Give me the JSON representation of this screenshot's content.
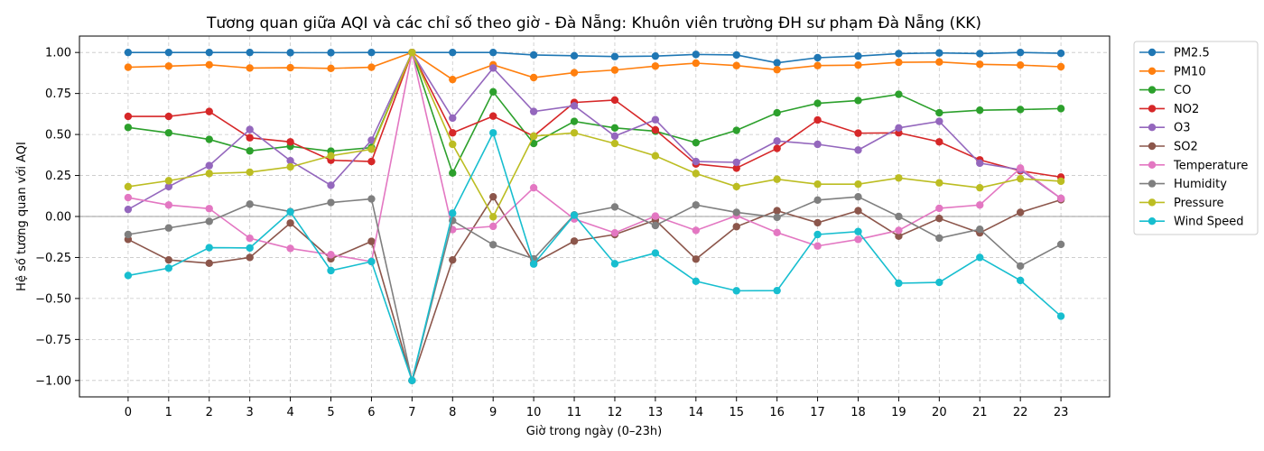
{
  "chart_data": {
    "type": "line",
    "title": "Tương quan giữa AQI và các chỉ số theo giờ - Đà Nẵng: Khuôn viên trường ĐH sư phạm Đà Nẵng (KK)",
    "xlabel": "Giờ trong ngày (0–23h)",
    "ylabel": "Hệ số tương quan với AQI",
    "x": [
      0,
      1,
      2,
      3,
      4,
      5,
      6,
      7,
      8,
      9,
      10,
      11,
      12,
      13,
      14,
      15,
      16,
      17,
      18,
      19,
      20,
      21,
      22,
      23
    ],
    "xlim": [
      -1.2,
      24.2
    ],
    "ylim": [
      -1.1,
      1.1
    ],
    "yticks": [
      -1.0,
      -0.75,
      -0.5,
      -0.25,
      0.0,
      0.25,
      0.5,
      0.75,
      1.0
    ],
    "grid": true,
    "legend_position": "outside-top-right",
    "series": [
      {
        "name": "PM2.5",
        "color": "#1f77b4",
        "values": [
          1.0,
          1.0,
          1.0,
          1.0,
          0.999,
          0.999,
          1.0,
          1.0,
          1.0,
          1.0,
          0.985,
          0.98,
          0.975,
          0.978,
          0.988,
          0.985,
          0.937,
          0.968,
          0.978,
          0.993,
          0.997,
          0.993,
          1.0,
          0.995
        ]
      },
      {
        "name": "PM10",
        "color": "#ff7f0e",
        "values": [
          0.91,
          0.917,
          0.925,
          0.905,
          0.907,
          0.903,
          0.91,
          1.0,
          0.835,
          0.925,
          0.847,
          0.877,
          0.893,
          0.917,
          0.935,
          0.92,
          0.895,
          0.92,
          0.923,
          0.94,
          0.942,
          0.928,
          0.923,
          0.913
        ]
      },
      {
        "name": "CO",
        "color": "#2ca02c",
        "values": [
          0.543,
          0.51,
          0.47,
          0.4,
          0.428,
          0.398,
          0.42,
          1.0,
          0.265,
          0.76,
          0.445,
          0.58,
          0.54,
          0.52,
          0.45,
          0.525,
          0.632,
          0.69,
          0.707,
          0.745,
          0.632,
          0.648,
          0.652,
          0.658
        ]
      },
      {
        "name": "NO2",
        "color": "#d62728",
        "values": [
          0.61,
          0.61,
          0.64,
          0.48,
          0.455,
          0.343,
          0.335,
          1.0,
          0.51,
          0.612,
          0.49,
          0.695,
          0.71,
          0.528,
          0.32,
          0.295,
          0.415,
          0.588,
          0.508,
          0.51,
          0.455,
          0.345,
          0.278,
          0.24
        ]
      },
      {
        "name": "O3",
        "color": "#9467bd",
        "values": [
          0.043,
          0.182,
          0.31,
          0.53,
          0.34,
          0.19,
          0.465,
          1.0,
          0.6,
          0.905,
          0.64,
          0.675,
          0.49,
          0.59,
          0.335,
          0.33,
          0.46,
          0.44,
          0.405,
          0.54,
          0.58,
          0.325,
          0.285,
          0.11
        ]
      },
      {
        "name": "SO2",
        "color": "#8c564b",
        "values": [
          -0.14,
          -0.265,
          -0.285,
          -0.25,
          -0.04,
          -0.258,
          -0.152,
          -1.0,
          -0.265,
          0.12,
          -0.285,
          -0.15,
          -0.11,
          -0.022,
          -0.26,
          -0.062,
          0.035,
          -0.038,
          0.035,
          -0.12,
          -0.012,
          -0.1,
          0.025,
          0.102
        ]
      },
      {
        "name": "Temperature",
        "color": "#e377c2",
        "values": [
          0.115,
          0.07,
          0.048,
          -0.133,
          -0.195,
          -0.233,
          -0.275,
          1.0,
          -0.08,
          -0.06,
          0.175,
          -0.015,
          -0.1,
          0.002,
          -0.085,
          0.005,
          -0.098,
          -0.18,
          -0.14,
          -0.085,
          0.05,
          0.07,
          0.295,
          0.11
        ]
      },
      {
        "name": "Humidity",
        "color": "#7f7f7f",
        "values": [
          -0.11,
          -0.07,
          -0.03,
          0.075,
          0.03,
          0.085,
          0.107,
          -1.0,
          -0.025,
          -0.172,
          -0.258,
          0.01,
          0.058,
          -0.055,
          0.07,
          0.025,
          -0.005,
          0.1,
          0.12,
          0.0,
          -0.132,
          -0.078,
          -0.302,
          -0.17
        ]
      },
      {
        "name": "Pressure",
        "color": "#bcbd22",
        "values": [
          0.182,
          0.218,
          0.262,
          0.27,
          0.302,
          0.37,
          0.41,
          1.0,
          0.44,
          -0.002,
          0.49,
          0.51,
          0.445,
          0.37,
          0.262,
          0.182,
          0.227,
          0.197,
          0.197,
          0.235,
          0.205,
          0.175,
          0.23,
          0.215
        ]
      },
      {
        "name": "Wind Speed",
        "color": "#17becf",
        "values": [
          -0.36,
          -0.315,
          -0.19,
          -0.192,
          0.028,
          -0.33,
          -0.275,
          -1.0,
          0.02,
          0.51,
          -0.29,
          0.008,
          -0.288,
          -0.223,
          -0.395,
          -0.453,
          -0.452,
          -0.11,
          -0.092,
          -0.407,
          -0.402,
          -0.25,
          -0.39,
          -0.608
        ]
      }
    ]
  }
}
